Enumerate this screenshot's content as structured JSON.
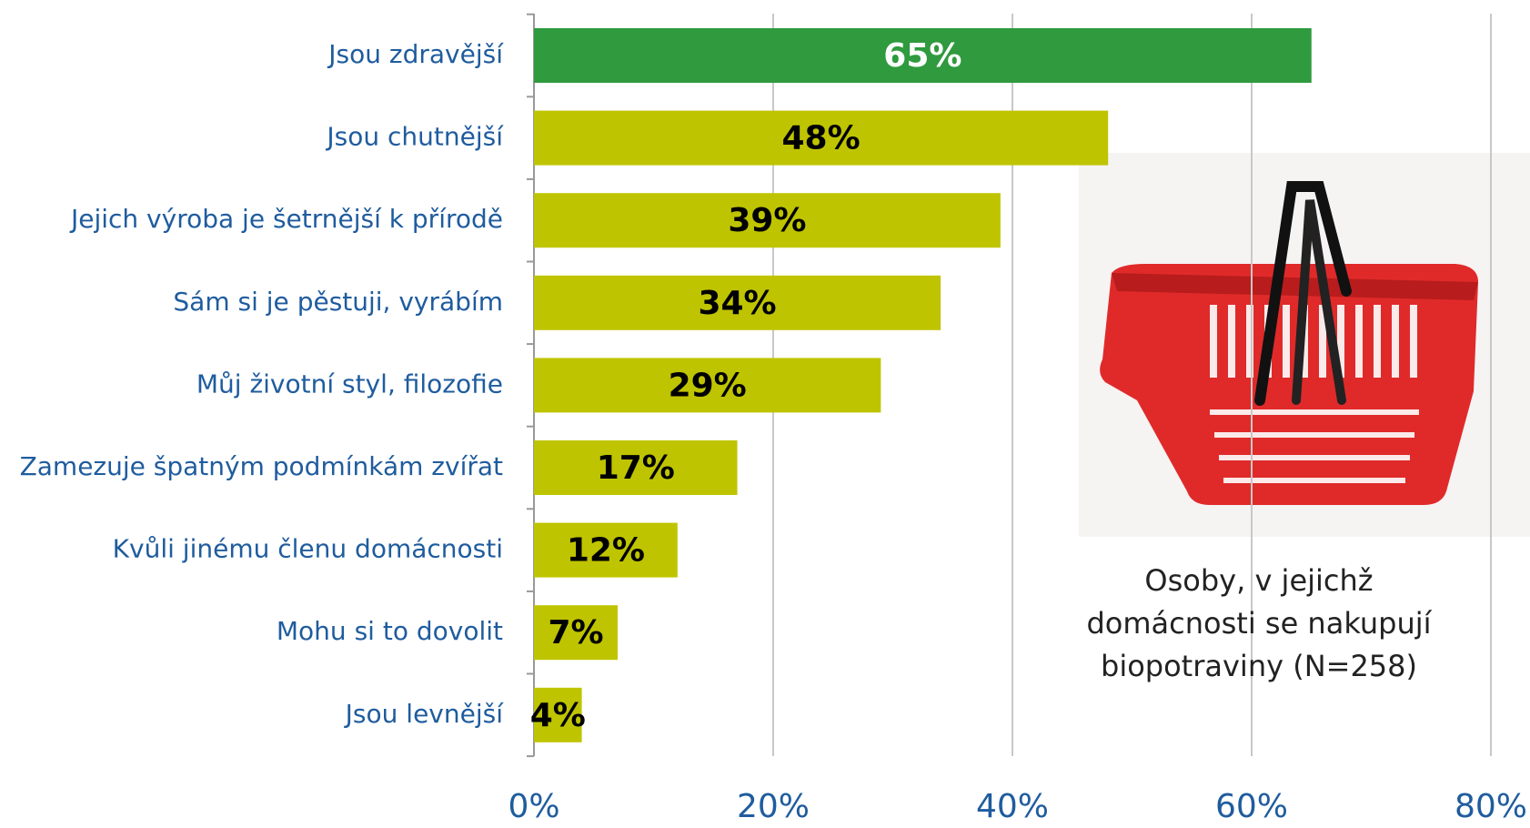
{
  "chart_data": {
    "type": "bar",
    "orientation": "horizontal",
    "categories": [
      "Jsou zdravější",
      "Jsou chutnější",
      "Jejich výroba je šetrnější k přírodě",
      "Sám si je pěstuji, vyrábím",
      "Můj životní styl, filozofie",
      "Zamezuje špatným podmínkám zvířat",
      "Kvůli jinému členu domácnosti",
      "Mohu si to dovolit",
      "Jsou levnější"
    ],
    "values": [
      65,
      48,
      39,
      34,
      29,
      17,
      12,
      7,
      4
    ],
    "value_labels": [
      "65%",
      "48%",
      "39%",
      "34%",
      "29%",
      "17%",
      "12%",
      "7%",
      "4%"
    ],
    "colors": [
      "#2f9a3e",
      "#bfc400",
      "#bfc400",
      "#bfc400",
      "#bfc400",
      "#bfc400",
      "#bfc400",
      "#bfc400",
      "#bfc400"
    ],
    "label_colors": [
      "#ffffff",
      "#000000",
      "#000000",
      "#000000",
      "#000000",
      "#000000",
      "#000000",
      "#000000",
      "#000000"
    ],
    "xlim": [
      0,
      80
    ],
    "xticks": [
      {
        "value": 0,
        "label": "0%"
      },
      {
        "value": 20,
        "label": "20%"
      },
      {
        "value": 40,
        "label": "40%"
      },
      {
        "value": 60,
        "label": "60%"
      },
      {
        "value": 80,
        "label": "80%"
      }
    ],
    "grid": true,
    "annotation": [
      "Osoby, v jejichž",
      "domácnosti se nakupují",
      "biopotraviny (N=258)"
    ]
  }
}
